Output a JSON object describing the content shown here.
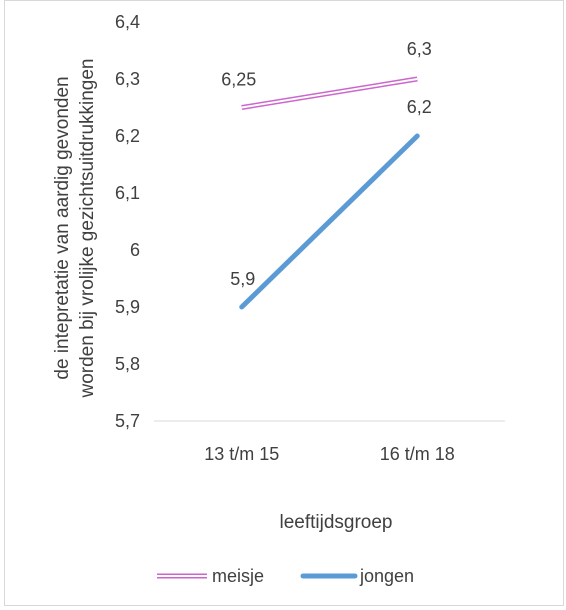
{
  "chart_data": {
    "type": "line",
    "title": "",
    "xlabel": "leeftijdsgroep",
    "ylabel": "de intepretatie van aardig gevonden worden bij vrolijke gezichtsuitdrukkingen",
    "ylabel_lines": [
      "de intepretatie van aardig gevonden",
      "worden bij vrolijke gezichtsuitdrukkingen"
    ],
    "categories": [
      "13 t/m 15",
      "16 t/m 18"
    ],
    "ylim": [
      5.7,
      6.4
    ],
    "yticks": [
      "5,7",
      "5,8",
      "5,9",
      "6",
      "6,1",
      "6,2",
      "6,3",
      "6,4"
    ],
    "grid": false,
    "legend": "bottom",
    "series": [
      {
        "name": "meisje",
        "values": [
          6.25,
          6.3
        ],
        "labels": [
          "6,25",
          "6,3"
        ],
        "color": "#cc66cc",
        "style": "double-line"
      },
      {
        "name": "jongen",
        "values": [
          5.9,
          6.2
        ],
        "labels": [
          "5,9",
          "6,2"
        ],
        "color": "#5b9bd5",
        "style": "thick-line"
      }
    ]
  }
}
